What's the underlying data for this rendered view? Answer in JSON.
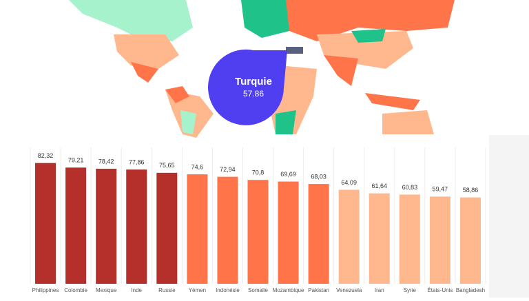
{
  "tooltip": {
    "label": "Turquie",
    "value": 57.86
  },
  "chart_data": {
    "type": "bar",
    "categories": [
      "Philippines",
      "Colombie",
      "Mexique",
      "Inde",
      "Russie",
      "Yémen",
      "Indonésie",
      "Somalie",
      "Mozambique",
      "Pakistan",
      "Venezuela",
      "Iran",
      "Syrie",
      "États-Unis",
      "Bangladesh"
    ],
    "values": [
      82.32,
      79.21,
      78.42,
      77.86,
      75.65,
      74.6,
      72.94,
      70.8,
      69.69,
      68.03,
      64.09,
      61.64,
      60.83,
      59.47,
      58.86
    ],
    "value_labels": [
      "82,32",
      "79,21",
      "78,42",
      "77,86",
      "75,65",
      "74,6",
      "72,94",
      "70,8",
      "69,69",
      "68,03",
      "64,09",
      "61,64",
      "60,83",
      "59,47",
      "58,86"
    ],
    "colors": [
      "#b5302a",
      "#b5302a",
      "#b5302a",
      "#b5302a",
      "#b5302a",
      "#ff7449",
      "#ff7449",
      "#ff7449",
      "#ff7449",
      "#ff7449",
      "#ffb78e",
      "#ffb78e",
      "#ffb78e",
      "#ffb78e",
      "#ffb78e"
    ],
    "ylim": [
      0,
      100
    ]
  }
}
